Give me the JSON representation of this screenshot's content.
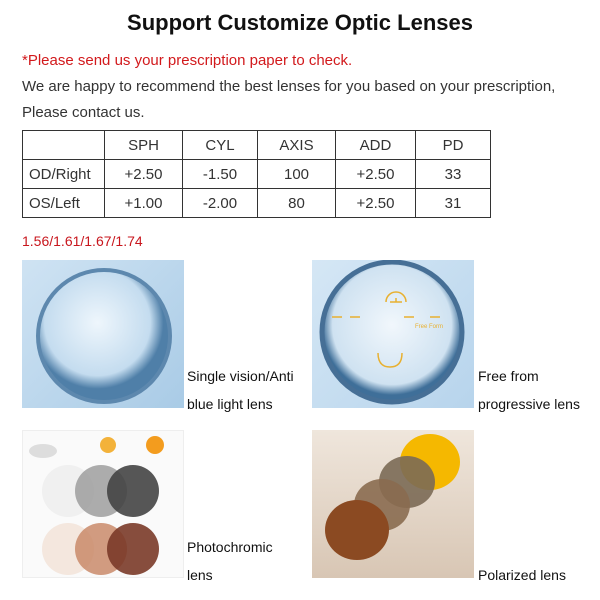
{
  "title": "Support Customize Optic Lenses",
  "note": "*Please send us your prescription paper to check.",
  "intro": [
    "We are happy to recommend the best lenses for you based on your prescription,",
    "Please contact us."
  ],
  "table": {
    "headers": [
      "",
      "SPH",
      "CYL",
      "AXIS",
      "ADD",
      "PD"
    ],
    "rows": [
      [
        "OD/Right",
        "+2.50",
        "-1.50",
        "100",
        "+2.50",
        "33"
      ],
      [
        "OS/Left",
        "+1.00",
        "-2.00",
        "80",
        "+2.50",
        "31"
      ]
    ]
  },
  "index_options": "1.56/1.61/1.67/1.74",
  "products": [
    {
      "caption": [
        "Single vision/Anti",
        "blue light lens"
      ]
    },
    {
      "caption": [
        "Free from",
        "progressive lens"
      ],
      "image_label": "Free Form"
    },
    {
      "caption": [
        "Photochromic",
        "lens"
      ]
    },
    {
      "caption": [
        "Polarized lens"
      ]
    }
  ],
  "colors": {
    "accent": "#d2191c",
    "lens_gold": "#e8b030"
  }
}
